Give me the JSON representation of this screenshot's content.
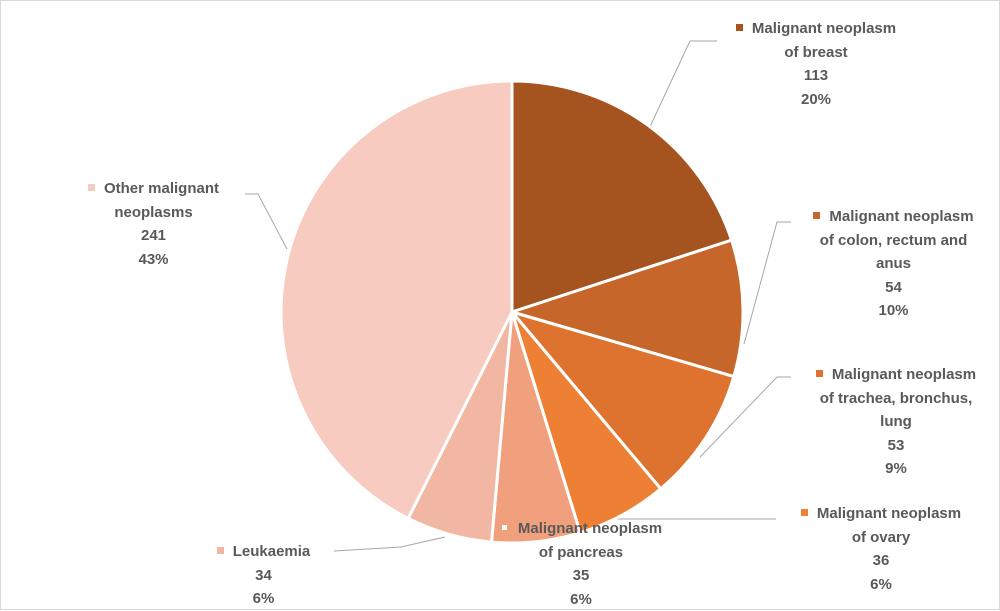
{
  "chart_data": {
    "type": "pie",
    "title": "",
    "slices": [
      {
        "name": "Malignant neoplasm of breast",
        "label_lines": [
          "Malignant neoplasm",
          "of breast"
        ],
        "value": 113,
        "percent": "20%",
        "color": "#a5531f"
      },
      {
        "name": "Malignant neoplasm of colon, rectum and anus",
        "label_lines": [
          "Malignant neoplasm",
          "of colon, rectum and",
          "anus"
        ],
        "value": 54,
        "percent": "10%",
        "color": "#c6662a"
      },
      {
        "name": "Malignant neoplasm of trachea, bronchus, lung",
        "label_lines": [
          "Malignant neoplasm",
          "of trachea, bronchus,",
          "lung"
        ],
        "value": 53,
        "percent": "9%",
        "color": "#dd732e"
      },
      {
        "name": "Malignant neoplasm of ovary",
        "label_lines": [
          "Malignant neoplasm",
          "of ovary"
        ],
        "value": 36,
        "percent": "6%",
        "color": "#ed8035"
      },
      {
        "name": "Malignant neoplasm of pancreas",
        "label_lines": [
          "Malignant neoplasm",
          "of pancreas"
        ],
        "value": 35,
        "percent": "6%",
        "color": "#f0a07c"
      },
      {
        "name": "Leukaemia",
        "label_lines": [
          "Leukaemia"
        ],
        "value": 34,
        "percent": "6%",
        "color": "#f2b7a2"
      },
      {
        "name": "Other malignant neoplasms",
        "label_lines": [
          "Other malignant",
          "neoplasms"
        ],
        "value": 241,
        "percent": "43%",
        "color": "#f7cbbf"
      }
    ]
  }
}
